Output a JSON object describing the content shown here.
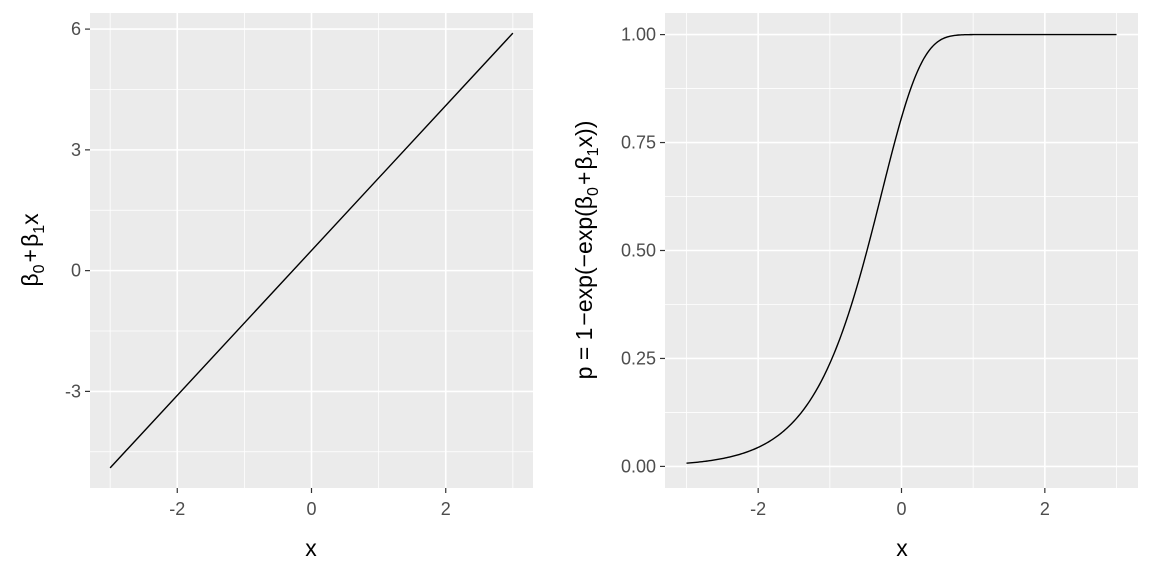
{
  "chart_data": [
    {
      "type": "line",
      "xlabel": "x",
      "ylabel": "β0 + β1x",
      "ylabel_parts": {
        "beta": "β",
        "sub0": "0",
        "plus": "+",
        "sub1": "1",
        "x": "x"
      },
      "xlim": [
        -3.3,
        3.3
      ],
      "ylim": [
        -5.4,
        6.4
      ],
      "x_ticks": [
        -2,
        0,
        2
      ],
      "x_tick_labels": [
        "-2",
        "0",
        "2"
      ],
      "y_ticks": [
        -3,
        0,
        3,
        6
      ],
      "y_tick_labels": [
        "-3",
        "0",
        "3",
        "6"
      ],
      "x_minor": [
        -3,
        -1,
        1,
        3
      ],
      "y_minor": [
        -4.5,
        -1.5,
        1.5,
        4.5
      ],
      "grid": true,
      "series": [
        {
          "x": [
            -3,
            3
          ],
          "y": [
            -4.9,
            5.9
          ]
        }
      ]
    },
    {
      "type": "line",
      "xlabel": "x",
      "ylabel": "p = 1 − exp(− exp(β0 + β1x))",
      "ylabel_parts": {
        "prefix": "p = 1",
        "minus": "−",
        "exp": "exp(",
        "beta": "β",
        "sub0": "0",
        "plus": "+",
        "sub1": "1",
        "x_close": "x))"
      },
      "xlim": [
        -3.3,
        3.3
      ],
      "ylim": [
        -0.05,
        1.05
      ],
      "x_ticks": [
        -2,
        0,
        2
      ],
      "x_tick_labels": [
        "-2",
        "0",
        "2"
      ],
      "y_ticks": [
        0,
        0.25,
        0.5,
        0.75,
        1.0
      ],
      "y_tick_labels": [
        "0.00",
        "0.25",
        "0.50",
        "0.75",
        "1.00"
      ],
      "x_minor": [
        -3,
        -1,
        1,
        3
      ],
      "y_minor": [
        0.125,
        0.375,
        0.625,
        0.875
      ],
      "grid": true,
      "series": [
        {
          "function": "1 - exp(-exp(b0 + b1*x))",
          "b0": 0.5,
          "b1": 1.8,
          "x_range": [
            -3,
            3
          ]
        }
      ]
    }
  ]
}
